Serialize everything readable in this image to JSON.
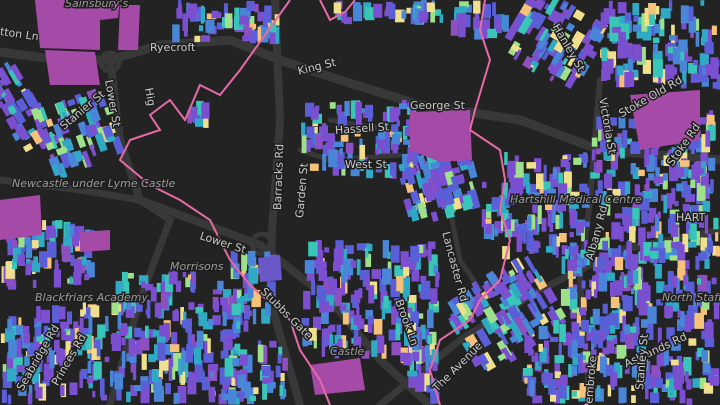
{
  "labels": [
    "Sainsbury's",
    "tton Ln",
    "Ryecroft",
    "Lower St",
    "Hig",
    "King St",
    "George St",
    "Hassell St",
    "West St",
    "Barracks Rd",
    "Garden St",
    "Newcastle under Lyme Castle",
    "Stanier St",
    "Lower St",
    "Morrisons",
    "Blackfriars Academy",
    "Stubbs Gate",
    "Brook Ln",
    "Lancaster Rd",
    "Hartshill Medical Centre",
    "Victoria St",
    "Stoke Old Rd",
    "Hanley St",
    "Stoke Rd",
    "Albany Rd",
    "North Staffordshire Hospital",
    "Ashlands Rd",
    "Castle",
    "The Avenue",
    "Seabridge Rd",
    "Princes Rd",
    "HART",
    "Pembroke",
    "Stanley St"
  ]
}
